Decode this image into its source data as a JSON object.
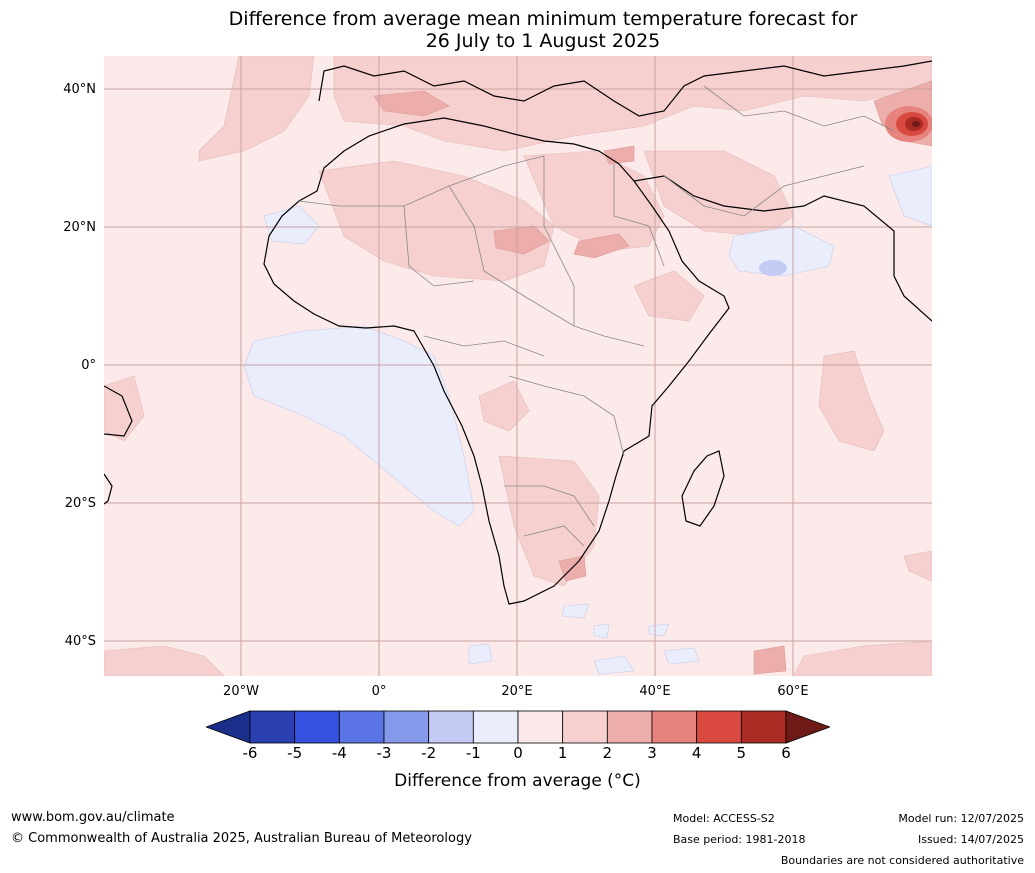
{
  "title": {
    "line1": "Difference from average mean minimum temperature forecast for",
    "line2": "26 July to 1 August 2025"
  },
  "map": {
    "lat_labels": [
      "40°N",
      "20°N",
      "0°",
      "20°S",
      "40°S"
    ],
    "lon_labels": [
      "20°W",
      "0°",
      "20°E",
      "40°E",
      "60°E"
    ],
    "colors": {
      "land_ocean_base": "#fceaea",
      "coast": "#000000",
      "borders": "#888888",
      "grid": "#c9a3a3"
    }
  },
  "colorbar": {
    "ticks": [
      "-6",
      "-5",
      "-4",
      "-3",
      "-2",
      "-1",
      "0",
      "1",
      "2",
      "3",
      "4",
      "5",
      "6"
    ],
    "colors": [
      "#1b2f8a",
      "#2a3fb0",
      "#3451e0",
      "#5a74e6",
      "#8799ea",
      "#c3cbf4",
      "#e9edfc",
      "#fceaea",
      "#f6d0cf",
      "#edaeab",
      "#e6837e",
      "#d9493f",
      "#aa2a24",
      "#6e1a16"
    ],
    "label": "Difference from average ($^\\circ$C)",
    "label_display": "Difference from average (°C)"
  },
  "footer": {
    "website": "www.bom.gov.au/climate",
    "copyright": "© Commonwealth of Australia 2025, Australian Bureau of Meteorology",
    "model": "Model: ACCESS-S2",
    "base_period": "Base period: 1981-2018",
    "model_run": "Model run: 12/07/2025",
    "issued": "Issued: 14/07/2025",
    "disclaimer": "Boundaries are not considered authoritative"
  }
}
